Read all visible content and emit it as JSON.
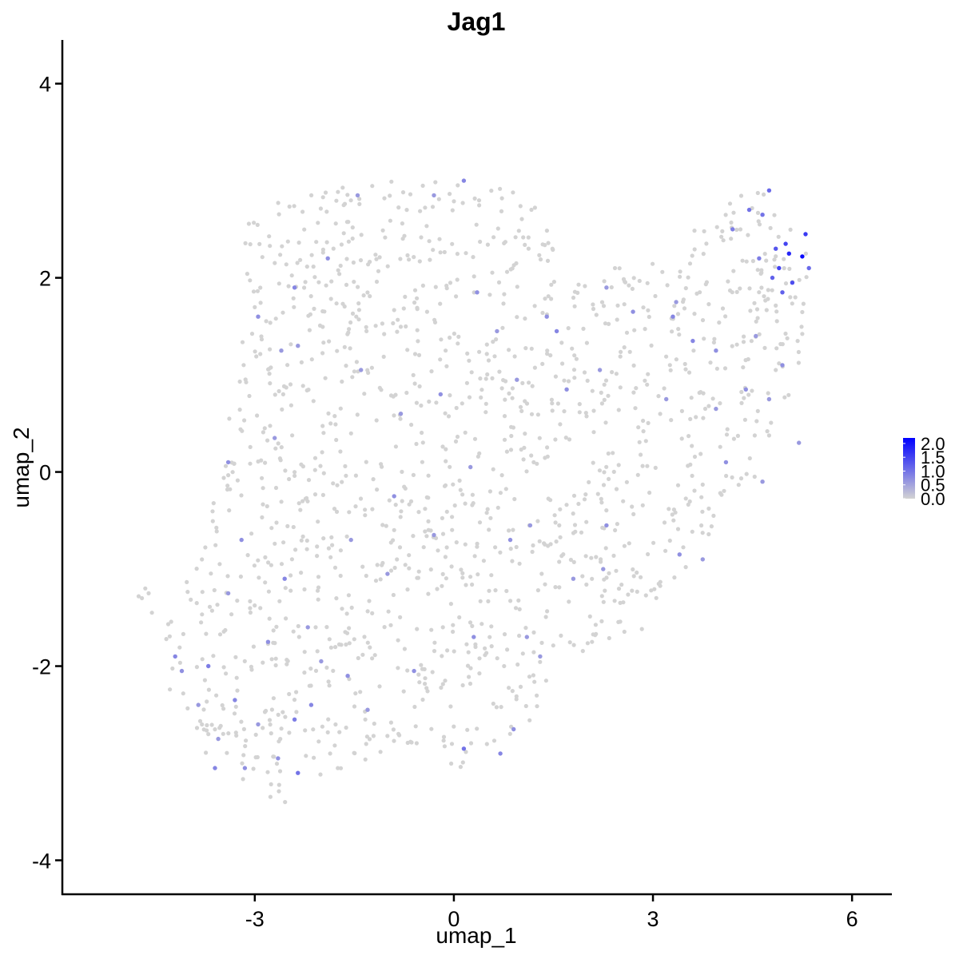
{
  "chart_data": {
    "type": "scatter",
    "title": "Jag1",
    "xlabel": "umap_1",
    "ylabel": "umap_2",
    "xlim": [
      -5.9,
      6.6
    ],
    "ylim": [
      -4.35,
      4.45
    ],
    "xticks": [
      -3,
      0,
      3,
      6
    ],
    "yticks": [
      -4,
      -2,
      0,
      2,
      4
    ],
    "xtick_labels": [
      "-3",
      "0",
      "3",
      "6"
    ],
    "ytick_labels": [
      "-4",
      "-2",
      "0",
      "2",
      "4"
    ],
    "grid": false,
    "legend": {
      "position": "right",
      "ticks": [
        2.0,
        1.5,
        1.0,
        0.5,
        0.0
      ],
      "tick_labels": [
        "2.0",
        "1.5",
        "1.0",
        "0.5",
        "0.0"
      ],
      "low_color": "#d3d3d3",
      "high_color": "#0000ff",
      "min": 0,
      "max": 2.2
    },
    "points_expressing": [
      {
        "x": 5.25,
        "y": 2.22,
        "v": 2.1
      },
      {
        "x": 5.05,
        "y": 2.25,
        "v": 1.8
      },
      {
        "x": 5.3,
        "y": 2.45,
        "v": 1.6
      },
      {
        "x": 5.0,
        "y": 2.35,
        "v": 1.5
      },
      {
        "x": 4.9,
        "y": 2.1,
        "v": 1.5
      },
      {
        "x": 5.1,
        "y": 1.95,
        "v": 1.4
      },
      {
        "x": 4.85,
        "y": 2.3,
        "v": 1.3
      },
      {
        "x": 4.95,
        "y": 1.85,
        "v": 1.2
      },
      {
        "x": 4.8,
        "y": 2.0,
        "v": 1.2
      },
      {
        "x": 4.75,
        "y": 2.9,
        "v": 1.1
      },
      {
        "x": 5.35,
        "y": 2.1,
        "v": 1.1
      },
      {
        "x": 4.65,
        "y": 2.65,
        "v": 1.0
      },
      {
        "x": 4.45,
        "y": 2.7,
        "v": 1.0
      },
      {
        "x": 4.6,
        "y": 2.2,
        "v": 0.9
      },
      {
        "x": 4.2,
        "y": 2.5,
        "v": 0.9
      },
      {
        "x": 3.3,
        "y": 1.6,
        "v": 0.8
      },
      {
        "x": 3.6,
        "y": 1.35,
        "v": 0.8
      },
      {
        "x": 4.4,
        "y": 0.85,
        "v": 0.7
      },
      {
        "x": 4.1,
        "y": 0.1,
        "v": 0.7
      },
      {
        "x": 4.65,
        "y": -0.1,
        "v": 0.6
      },
      {
        "x": 3.95,
        "y": 0.65,
        "v": 0.6
      },
      {
        "x": 1.55,
        "y": 1.45,
        "v": 0.8
      },
      {
        "x": 1.4,
        "y": 1.6,
        "v": 0.7
      },
      {
        "x": 2.2,
        "y": 1.05,
        "v": 0.6
      },
      {
        "x": 1.7,
        "y": 0.85,
        "v": 0.7
      },
      {
        "x": 0.95,
        "y": 0.95,
        "v": 0.6
      },
      {
        "x": 0.65,
        "y": 1.45,
        "v": 0.6
      },
      {
        "x": 0.35,
        "y": 1.85,
        "v": 0.7
      },
      {
        "x": -0.3,
        "y": 2.85,
        "v": 0.6
      },
      {
        "x": 0.15,
        "y": 3.0,
        "v": 0.8
      },
      {
        "x": -1.45,
        "y": 2.85,
        "v": 0.6
      },
      {
        "x": -1.9,
        "y": 2.2,
        "v": 0.7
      },
      {
        "x": -2.4,
        "y": 1.9,
        "v": 0.8
      },
      {
        "x": -2.6,
        "y": 1.25,
        "v": 0.6
      },
      {
        "x": -2.95,
        "y": 1.6,
        "v": 0.7
      },
      {
        "x": -2.35,
        "y": 1.3,
        "v": 0.6
      },
      {
        "x": -1.4,
        "y": 1.05,
        "v": 0.6
      },
      {
        "x": -0.8,
        "y": 0.6,
        "v": 0.6
      },
      {
        "x": -0.2,
        "y": 0.8,
        "v": 0.7
      },
      {
        "x": 0.25,
        "y": 0.05,
        "v": 0.6
      },
      {
        "x": -0.9,
        "y": -0.25,
        "v": 0.7
      },
      {
        "x": -1.55,
        "y": -0.7,
        "v": 0.6
      },
      {
        "x": -2.55,
        "y": -1.1,
        "v": 0.8
      },
      {
        "x": -3.2,
        "y": -0.7,
        "v": 0.7
      },
      {
        "x": -3.4,
        "y": -1.25,
        "v": 0.6
      },
      {
        "x": -2.8,
        "y": -1.75,
        "v": 0.7
      },
      {
        "x": -2.2,
        "y": -1.6,
        "v": 0.6
      },
      {
        "x": -3.7,
        "y": -2.0,
        "v": 0.9
      },
      {
        "x": -4.1,
        "y": -2.05,
        "v": 0.7
      },
      {
        "x": -3.85,
        "y": -2.4,
        "v": 0.6
      },
      {
        "x": -3.3,
        "y": -2.35,
        "v": 0.8
      },
      {
        "x": -2.95,
        "y": -2.6,
        "v": 0.6
      },
      {
        "x": -2.4,
        "y": -2.55,
        "v": 0.9
      },
      {
        "x": -2.15,
        "y": -2.4,
        "v": 0.8
      },
      {
        "x": -2.0,
        "y": -1.95,
        "v": 0.6
      },
      {
        "x": -1.6,
        "y": -2.1,
        "v": 0.7
      },
      {
        "x": -2.35,
        "y": -3.1,
        "v": 1.0
      },
      {
        "x": -2.65,
        "y": -2.95,
        "v": 0.7
      },
      {
        "x": -3.15,
        "y": -3.05,
        "v": 0.7
      },
      {
        "x": -3.6,
        "y": -3.05,
        "v": 0.8
      },
      {
        "x": -4.2,
        "y": -1.9,
        "v": 0.8
      },
      {
        "x": -3.55,
        "y": -2.75,
        "v": 0.6
      },
      {
        "x": -1.3,
        "y": -2.45,
        "v": 0.6
      },
      {
        "x": -0.6,
        "y": -2.05,
        "v": 0.7
      },
      {
        "x": 0.15,
        "y": -2.85,
        "v": 1.0
      },
      {
        "x": 0.7,
        "y": -2.9,
        "v": 0.8
      },
      {
        "x": 0.9,
        "y": -2.65,
        "v": 0.7
      },
      {
        "x": 1.3,
        "y": -1.9,
        "v": 0.6
      },
      {
        "x": 1.1,
        "y": -1.7,
        "v": 0.6
      },
      {
        "x": 0.3,
        "y": -1.7,
        "v": 0.7
      },
      {
        "x": 1.8,
        "y": -1.1,
        "v": 0.6
      },
      {
        "x": 2.25,
        "y": -1.0,
        "v": 0.6
      },
      {
        "x": 2.3,
        "y": -0.55,
        "v": 0.7
      },
      {
        "x": 1.15,
        "y": -0.55,
        "v": 0.6
      },
      {
        "x": 0.85,
        "y": -0.7,
        "v": 0.7
      },
      {
        "x": -0.3,
        "y": -0.65,
        "v": 0.6
      },
      {
        "x": -1.0,
        "y": -1.05,
        "v": 0.6
      },
      {
        "x": -3.4,
        "y": 0.1,
        "v": 0.7
      },
      {
        "x": -2.7,
        "y": 0.35,
        "v": 0.6
      },
      {
        "x": 3.4,
        "y": -0.85,
        "v": 0.7
      },
      {
        "x": 3.75,
        "y": -0.9,
        "v": 0.6
      },
      {
        "x": 3.2,
        "y": 0.75,
        "v": 0.6
      },
      {
        "x": 2.3,
        "y": 1.9,
        "v": 0.6
      },
      {
        "x": 2.7,
        "y": 1.65,
        "v": 0.7
      },
      {
        "x": 3.35,
        "y": 1.75,
        "v": 0.6
      },
      {
        "x": 3.95,
        "y": 1.25,
        "v": 0.7
      },
      {
        "x": 4.55,
        "y": 1.4,
        "v": 0.6
      },
      {
        "x": 5.2,
        "y": 0.3,
        "v": 0.6
      },
      {
        "x": 4.75,
        "y": 0.75,
        "v": 0.6
      },
      {
        "x": 4.95,
        "y": 1.1,
        "v": 0.7
      }
    ]
  }
}
